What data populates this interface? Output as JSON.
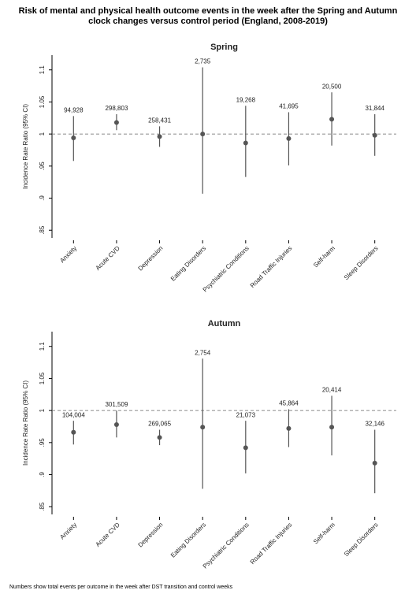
{
  "title": "Risk of mental and physical health outcome events in the week after the Spring and Autumn clock changes versus control period (England, 2008-2019)",
  "note": "Numbers show total events per outcome in the week after DST transition and control weeks",
  "chart_data": [
    {
      "type": "errorbar",
      "title": "Spring",
      "y_label": "Incidence Rate Ratio (95% CI)",
      "color": "#555555",
      "reference_line": 1,
      "categories": [
        "Anxiety",
        "Acute CVD",
        "Depression",
        "Eating Disorders",
        "Psychiatric Conditions",
        "Road Traffic Injuries",
        "Self-harm",
        "Sleep Disorders"
      ],
      "values": [
        0.994,
        1.018,
        0.996,
        1.0,
        0.986,
        0.993,
        1.023,
        0.998
      ],
      "lower": [
        0.958,
        1.006,
        0.98,
        0.907,
        0.933,
        0.951,
        0.982,
        0.966
      ],
      "upper": [
        1.028,
        1.031,
        1.012,
        1.104,
        1.044,
        1.034,
        1.065,
        1.031
      ],
      "event_counts": [
        {
          "value": 94928,
          "label": "94,928"
        },
        {
          "value": 298803,
          "label": "298,803"
        },
        {
          "value": 258431,
          "label": "258,431"
        },
        {
          "value": 2735,
          "label": "2,735"
        },
        {
          "value": 19268,
          "label": "19,268"
        },
        {
          "value": 41695,
          "label": "41,695"
        },
        {
          "value": 20500,
          "label": "20,500"
        },
        {
          "value": 31844,
          "label": "31,844"
        }
      ],
      "ylim": [
        0.838,
        1.123
      ],
      "yticks": [
        {
          "value": 0.85,
          "label": ".85"
        },
        {
          "value": 0.9,
          "label": ".9"
        },
        {
          "value": 0.95,
          "label": ".95"
        },
        1,
        1.05,
        1.1
      ]
    },
    {
      "type": "errorbar",
      "title": "Autumn",
      "y_label": "Incidence Rate Ratio (95% CI)",
      "color": "#555555",
      "reference_line": 1,
      "categories": [
        "Anxiety",
        "Acute CVD",
        "Depression",
        "Eating Disorders",
        "Psychiatric Conditions",
        "Road Traffic Injuries",
        "Self-harm",
        "Sleep Disorders"
      ],
      "values": [
        0.966,
        0.978,
        0.958,
        0.974,
        0.942,
        0.972,
        0.974,
        0.918
      ],
      "lower": [
        0.947,
        0.958,
        0.946,
        0.878,
        0.902,
        0.943,
        0.93,
        0.871
      ],
      "upper": [
        0.984,
        1.0,
        0.97,
        1.081,
        0.984,
        1.002,
        1.023,
        0.97
      ],
      "event_counts": [
        {
          "value": 104004,
          "label": "104,004"
        },
        {
          "value": 301509,
          "label": "301,509"
        },
        {
          "value": 269065,
          "label": "269,065"
        },
        {
          "value": 2754,
          "label": "2,754"
        },
        {
          "value": 21073,
          "label": "21,073"
        },
        {
          "value": 45864,
          "label": "45,864"
        },
        {
          "value": 20414,
          "label": "20,414"
        },
        {
          "value": 32146,
          "label": "32,146"
        }
      ],
      "ylim": [
        0.838,
        1.123
      ],
      "yticks": [
        {
          "value": 0.85,
          "label": ".85"
        },
        {
          "value": 0.9,
          "label": ".9"
        },
        {
          "value": 0.95,
          "label": ".95"
        },
        1,
        1.05,
        1.1
      ]
    }
  ]
}
